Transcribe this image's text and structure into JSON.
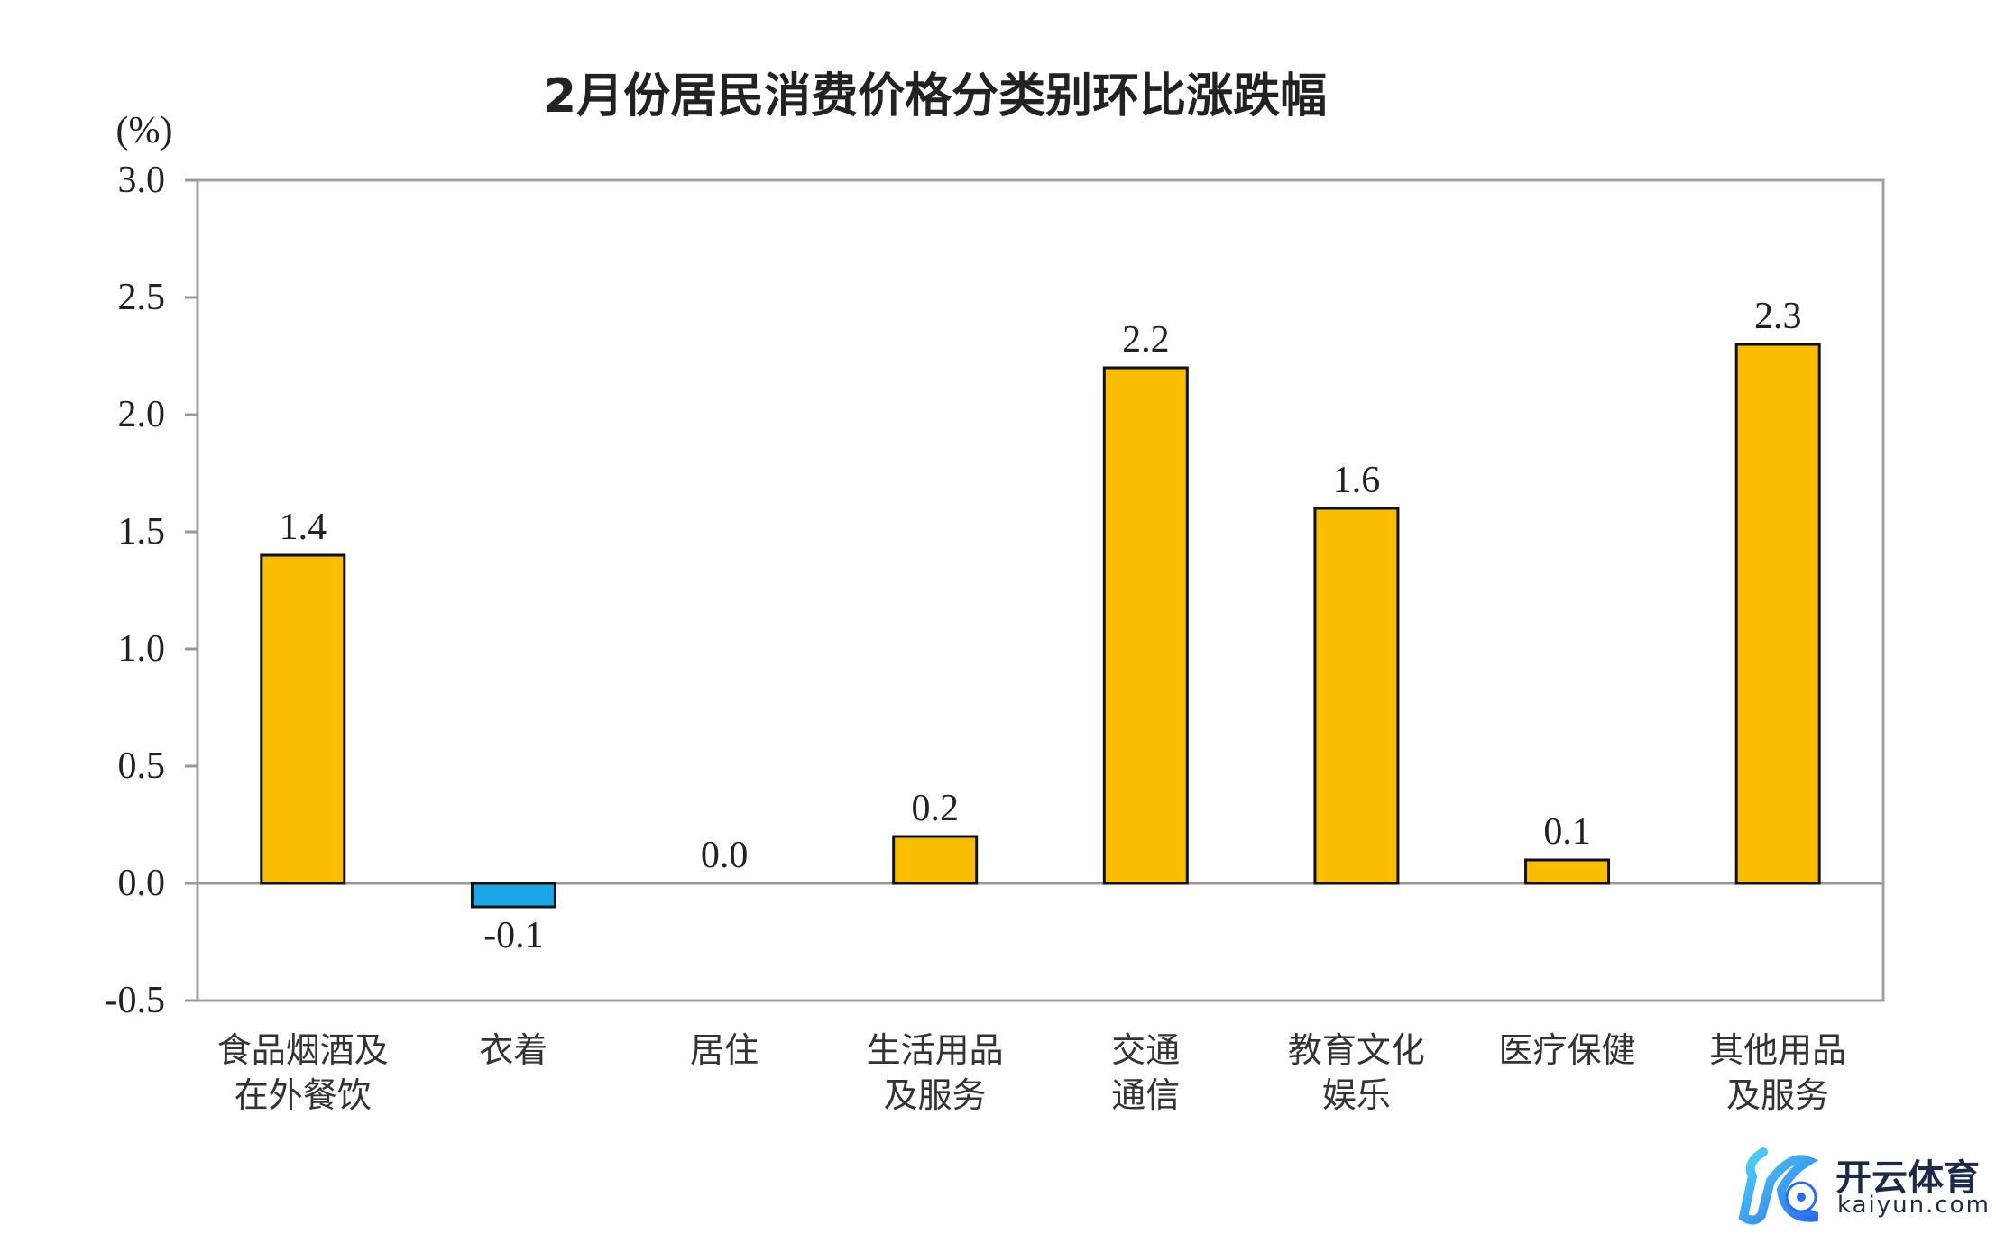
{
  "chart_data": {
    "type": "bar",
    "title": "2月份居民消费价格分类别环比涨跌幅",
    "ylabel": "(%)",
    "xlabel": "",
    "ylim": [
      -0.5,
      3.0
    ],
    "yticks": [
      "3.0",
      "2.5",
      "2.0",
      "1.5",
      "1.0",
      "0.5",
      "0.0",
      "-0.5"
    ],
    "ytick_values": [
      3.0,
      2.5,
      2.0,
      1.5,
      1.0,
      0.5,
      0.0,
      -0.5
    ],
    "categories": [
      [
        "食品烟酒及",
        "在外餐饮"
      ],
      [
        "衣着"
      ],
      [
        "居住"
      ],
      [
        "生活用品",
        "及服务"
      ],
      [
        "交通",
        "通信"
      ],
      [
        "教育文化",
        "娱乐"
      ],
      [
        "医疗保健"
      ],
      [
        "其他用品",
        "及服务"
      ]
    ],
    "values": [
      1.4,
      -0.1,
      0.0,
      0.2,
      2.2,
      1.6,
      0.1,
      2.3
    ],
    "data_labels": [
      "1.4",
      "-0.1",
      "0.0",
      "0.2",
      "2.2",
      "1.6",
      "0.1",
      "2.3"
    ],
    "colors": {
      "positive": "#FBBD00",
      "negative": "#1BA6E6",
      "axis": "#999999"
    },
    "grid": false
  },
  "watermark": {
    "brand_cn": "开云体育",
    "brand_en": "kaiyun.com"
  }
}
